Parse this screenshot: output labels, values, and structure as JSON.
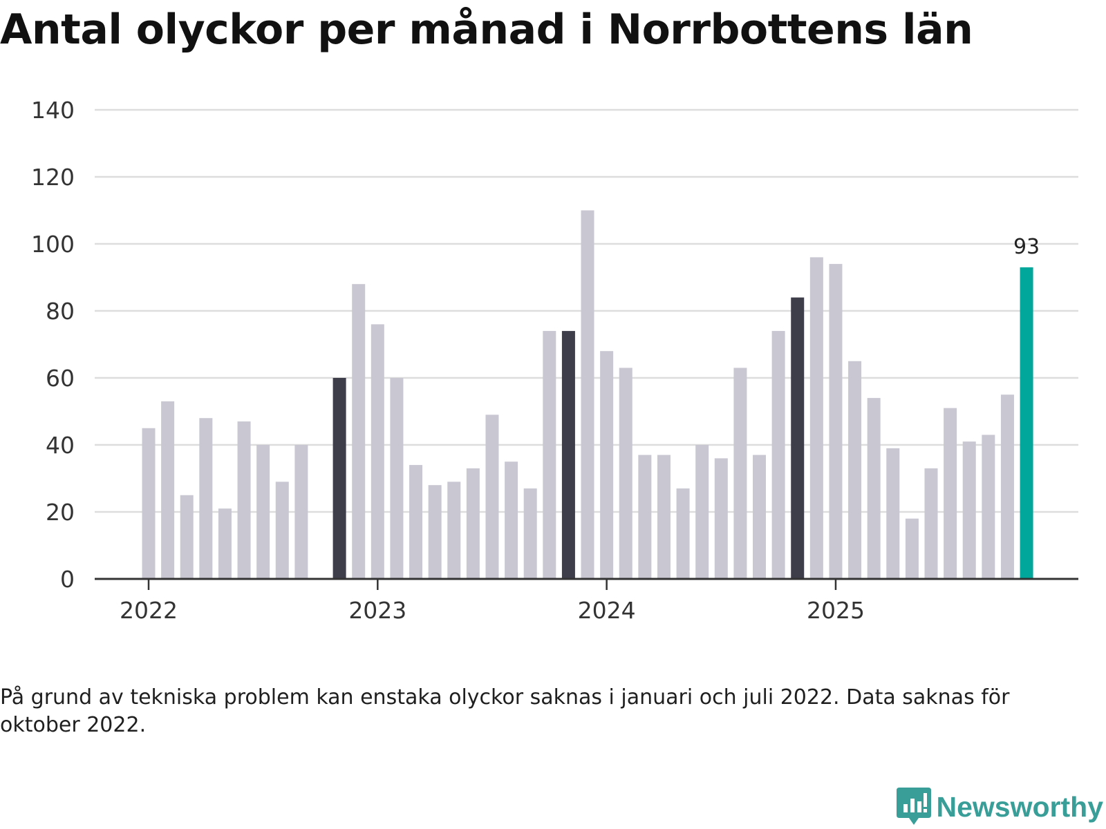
{
  "colors": {
    "default_bar": "#c8c7d2",
    "january_bar": "#3e3d4a",
    "latest_bar": "#00a79a",
    "grid": "#dddddd",
    "axis": "#333333",
    "brand": "#3a9e98"
  },
  "footnote": "På grund av tekniska problem kan enstaka olyckor saknas i januari och juli 2022. Data saknas för oktober 2022.",
  "brand": {
    "name": "Newsworthy",
    "icon": "newsworthy-chat-bars-icon"
  },
  "chart_data": {
    "type": "bar",
    "title": "Antal olyckor per månad i Norrbottens län",
    "xlabel": "",
    "ylabel": "",
    "ylim": [
      0,
      140
    ],
    "yticks": [
      0,
      20,
      40,
      60,
      80,
      100,
      120,
      140
    ],
    "year_ticks": [
      {
        "label": "2022",
        "index": 0
      },
      {
        "label": "2023",
        "index": 12
      },
      {
        "label": "2024",
        "index": 24
      },
      {
        "label": "2025",
        "index": 36
      }
    ],
    "grid": true,
    "categories": [
      "2022-01",
      "2022-02",
      "2022-03",
      "2022-04",
      "2022-05",
      "2022-06",
      "2022-07",
      "2022-08",
      "2022-09",
      "2022-10",
      "2022-11",
      "2022-12",
      "2023-01",
      "2023-02",
      "2023-03",
      "2023-04",
      "2023-05",
      "2023-06",
      "2023-07",
      "2023-08",
      "2023-09",
      "2023-10",
      "2023-11",
      "2023-12",
      "2024-01",
      "2024-02",
      "2024-03",
      "2024-04",
      "2024-05",
      "2024-06",
      "2024-07",
      "2024-08",
      "2024-09",
      "2024-10",
      "2024-11",
      "2024-12",
      "2025-01",
      "2025-02",
      "2025-03",
      "2025-04",
      "2025-05",
      "2025-06",
      "2025-07",
      "2025-08",
      "2025-09",
      "2025-10"
    ],
    "values": [
      45,
      53,
      25,
      48,
      21,
      47,
      40,
      29,
      40,
      null,
      60,
      88,
      76,
      60,
      34,
      28,
      29,
      33,
      49,
      35,
      27,
      74,
      74,
      110,
      68,
      63,
      37,
      37,
      27,
      40,
      36,
      63,
      37,
      74,
      84,
      96,
      94,
      65,
      54,
      39,
      18,
      33,
      51,
      41,
      43,
      55
    ],
    "appended_value": 93,
    "highlighted_indices": [
      10,
      22,
      34
    ],
    "latest_label": "93"
  }
}
